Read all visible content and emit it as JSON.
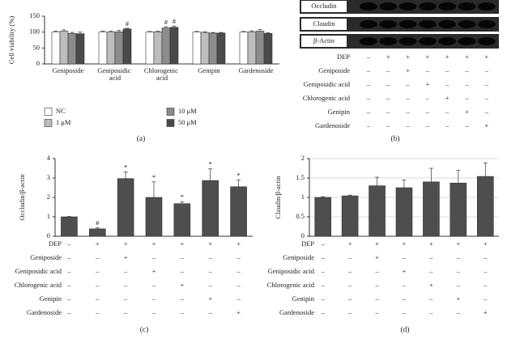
{
  "chart_data": [
    {
      "type": "bar",
      "ylabel": "Cell viability (%)",
      "caption": "(a)",
      "categories": [
        "Geniposide",
        "Geniposidic acid",
        "Chlorogenic acid",
        "Genipin",
        "Gardenoside"
      ],
      "series": [
        {
          "name": "NC",
          "color": "#ffffff",
          "values": [
            100,
            100,
            100,
            100,
            100
          ],
          "errors": [
            3,
            3,
            2,
            2,
            2
          ],
          "significance": [
            null,
            null,
            null,
            null,
            null
          ]
        },
        {
          "name": "1 μM",
          "color": "#bdbdbd",
          "values": [
            103,
            100,
            101,
            99,
            101
          ],
          "errors": [
            4,
            3,
            2,
            2,
            3
          ],
          "significance": [
            null,
            null,
            null,
            null,
            null
          ]
        },
        {
          "name": "10 μM",
          "color": "#8c8c8c",
          "values": [
            96,
            101,
            113,
            97,
            103
          ],
          "errors": [
            3,
            5,
            4,
            2,
            5
          ],
          "significance": [
            null,
            null,
            "#",
            null,
            null
          ]
        },
        {
          "name": "50 μM",
          "color": "#4a4a4c",
          "values": [
            95,
            110,
            115,
            97,
            96
          ],
          "errors": [
            5,
            2,
            4,
            2,
            2
          ],
          "significance": [
            null,
            "#",
            "#",
            null,
            null
          ]
        }
      ],
      "ylim": [
        0,
        150
      ],
      "yticks": [
        0,
        50,
        100,
        150
      ],
      "grid": false
    },
    {
      "type": "bar",
      "ylabel": "Occludin/β-actin",
      "caption": "(c)",
      "color": "#4d4e50",
      "values": [
        1.0,
        0.38,
        2.97,
        2.0,
        1.68,
        2.87,
        2.55
      ],
      "errors": [
        0.02,
        0.05,
        0.35,
        0.8,
        0.1,
        0.6,
        0.35
      ],
      "significance": [
        null,
        "#",
        "*",
        "*",
        "*",
        "*",
        "*"
      ],
      "ylim": [
        0,
        4
      ],
      "yticks": [
        0,
        1,
        2,
        3,
        4
      ],
      "grid": false
    },
    {
      "type": "bar",
      "ylabel": "Claudin/β-actin",
      "caption": "(d)",
      "color": "#4d4e50",
      "values": [
        1.0,
        1.04,
        1.3,
        1.25,
        1.4,
        1.37,
        1.54
      ],
      "errors": [
        0.02,
        0.02,
        0.22,
        0.2,
        0.35,
        0.33,
        0.35
      ],
      "ylim": [
        0,
        2
      ],
      "yticks": [
        0,
        0.5,
        1,
        1.5,
        2
      ],
      "grid": true
    }
  ],
  "blot": {
    "bands": [
      "Occludin",
      "Claudin",
      "β-Actin"
    ],
    "caption": "(b)"
  },
  "treatments": {
    "rows": [
      {
        "label": "DEP",
        "signs": [
          "–",
          "+",
          "+",
          "+",
          "+",
          "+",
          "+"
        ]
      },
      {
        "label": "Geniposide",
        "signs": [
          "–",
          "–",
          "+",
          "–",
          "–",
          "–",
          "–"
        ]
      },
      {
        "label": "Geniposidic acid",
        "signs": [
          "–",
          "–",
          "–",
          "+",
          "–",
          "–",
          "–"
        ]
      },
      {
        "label": "Chlorogenic acid",
        "signs": [
          "–",
          "–",
          "–",
          "–",
          "+",
          "–",
          "–"
        ]
      },
      {
        "label": "Genipin",
        "signs": [
          "–",
          "–",
          "–",
          "–",
          "–",
          "+",
          "–"
        ]
      },
      {
        "label": "Gardenoside",
        "signs": [
          "–",
          "–",
          "–",
          "–",
          "–",
          "–",
          "+"
        ]
      }
    ]
  }
}
